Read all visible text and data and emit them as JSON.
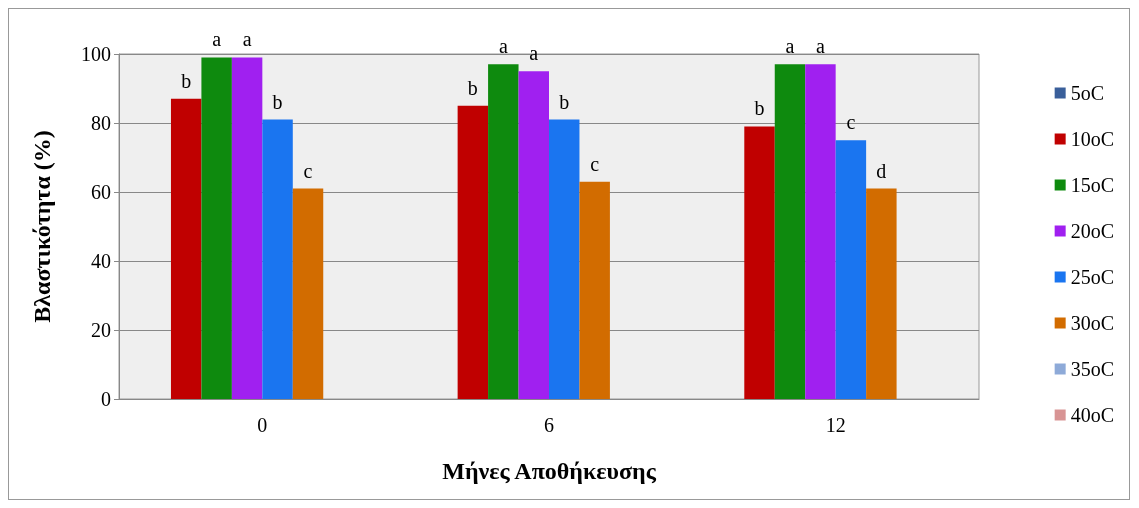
{
  "chart_data": {
    "type": "bar",
    "ylabel": "Βλαστικότητα (%)",
    "xlabel": "Μήνες Αποθήκευσης",
    "categories": [
      "0",
      "6",
      "12"
    ],
    "series": [
      {
        "name": "5oC",
        "color": "#3a5f9a",
        "values": [
          0,
          0,
          0
        ]
      },
      {
        "name": "10oC",
        "color": "#c00000",
        "values": [
          87,
          85,
          79
        ],
        "value_labels": [
          "b",
          "b",
          "b"
        ]
      },
      {
        "name": "15oC",
        "color": "#0e8a0e",
        "values": [
          99,
          97,
          97
        ],
        "value_labels": [
          "a",
          "a",
          "a"
        ]
      },
      {
        "name": "20oC",
        "color": "#a020f0",
        "values": [
          99,
          95,
          97
        ],
        "value_labels": [
          "a",
          "a",
          "a"
        ]
      },
      {
        "name": "25oC",
        "color": "#1a75f0",
        "values": [
          81,
          81,
          75
        ],
        "value_labels": [
          "b",
          "b",
          "c"
        ]
      },
      {
        "name": "30oC",
        "color": "#d26c00",
        "values": [
          61,
          63,
          61
        ],
        "value_labels": [
          "c",
          "c",
          "d"
        ]
      },
      {
        "name": "35oC",
        "color": "#8eaad8",
        "values": [
          0,
          0,
          0
        ]
      },
      {
        "name": "40oC",
        "color": "#d89494",
        "values": [
          0,
          0,
          0
        ]
      }
    ],
    "ylim": [
      0,
      100
    ],
    "yticks": [
      0,
      20,
      40,
      60,
      80,
      100
    ],
    "grid": "y",
    "legend": "right"
  }
}
